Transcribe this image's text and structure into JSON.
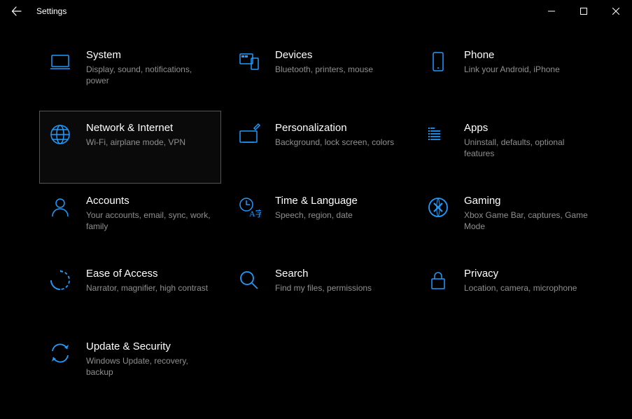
{
  "window": {
    "title": "Settings"
  },
  "colors": {
    "icon": "#0078d4",
    "icon_bright": "#1f9bff",
    "desc": "#8f8f8f",
    "title": "#ffffff",
    "bg": "#000000",
    "selected_border": "#555555"
  },
  "tiles": [
    {
      "id": "system",
      "title": "System",
      "desc": "Display, sound, notifications, power",
      "icon": "laptop",
      "selected": false
    },
    {
      "id": "devices",
      "title": "Devices",
      "desc": "Bluetooth, printers, mouse",
      "icon": "devices",
      "selected": false
    },
    {
      "id": "phone",
      "title": "Phone",
      "desc": "Link your Android, iPhone",
      "icon": "phone",
      "selected": false
    },
    {
      "id": "network",
      "title": "Network & Internet",
      "desc": "Wi-Fi, airplane mode, VPN",
      "icon": "globe",
      "selected": true
    },
    {
      "id": "personalization",
      "title": "Personalization",
      "desc": "Background, lock screen, colors",
      "icon": "brush",
      "selected": false
    },
    {
      "id": "apps",
      "title": "Apps",
      "desc": "Uninstall, defaults, optional features",
      "icon": "apps",
      "selected": false
    },
    {
      "id": "accounts",
      "title": "Accounts",
      "desc": "Your accounts, email, sync, work, family",
      "icon": "person",
      "selected": false
    },
    {
      "id": "time",
      "title": "Time & Language",
      "desc": "Speech, region, date",
      "icon": "time-lang",
      "selected": false
    },
    {
      "id": "gaming",
      "title": "Gaming",
      "desc": "Xbox Game Bar, captures, Game Mode",
      "icon": "gaming",
      "selected": false
    },
    {
      "id": "ease",
      "title": "Ease of Access",
      "desc": "Narrator, magnifier, high contrast",
      "icon": "ease",
      "selected": false
    },
    {
      "id": "search",
      "title": "Search",
      "desc": "Find my files, permissions",
      "icon": "search",
      "selected": false
    },
    {
      "id": "privacy",
      "title": "Privacy",
      "desc": "Location, camera, microphone",
      "icon": "lock",
      "selected": false
    },
    {
      "id": "update",
      "title": "Update & Security",
      "desc": "Windows Update, recovery, backup",
      "icon": "update",
      "selected": false
    }
  ]
}
